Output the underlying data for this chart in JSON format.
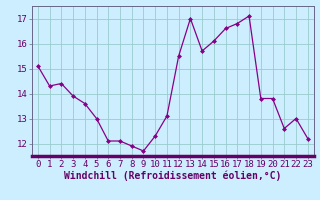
{
  "x": [
    0,
    1,
    2,
    3,
    4,
    5,
    6,
    7,
    8,
    9,
    10,
    11,
    12,
    13,
    14,
    15,
    16,
    17,
    18,
    19,
    20,
    21,
    22,
    23
  ],
  "y": [
    15.1,
    14.3,
    14.4,
    13.9,
    13.6,
    13.0,
    12.1,
    12.1,
    11.9,
    11.7,
    12.3,
    13.1,
    15.5,
    17.0,
    15.7,
    16.1,
    16.6,
    16.8,
    17.1,
    13.8,
    13.8,
    12.6,
    13.0,
    12.2
  ],
  "line_color": "#880088",
  "marker": "D",
  "marker_size": 2,
  "bg_color": "#cceeff",
  "grid_color": "#99cccc",
  "xlabel": "Windchill (Refroidissement éolien,°C)",
  "xlabel_fontsize": 7,
  "xlim": [
    -0.5,
    23.5
  ],
  "ylim": [
    11.5,
    17.5
  ],
  "yticks": [
    12,
    13,
    14,
    15,
    16,
    17
  ],
  "xticks": [
    0,
    1,
    2,
    3,
    4,
    5,
    6,
    7,
    8,
    9,
    10,
    11,
    12,
    13,
    14,
    15,
    16,
    17,
    18,
    19,
    20,
    21,
    22,
    23
  ],
  "tick_fontsize": 6.5,
  "spine_color": "#666688",
  "bottom_bar_color": "#660066"
}
